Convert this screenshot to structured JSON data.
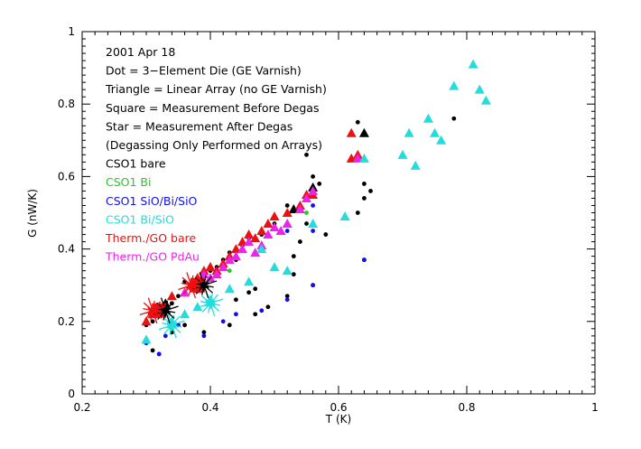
{
  "chart_data": {
    "type": "scatter",
    "xlabel": "T (K)",
    "ylabel": "G (nW/K)",
    "xlim": [
      0.2,
      1.0
    ],
    "ylim": [
      0,
      1.0
    ],
    "x_ticks": [
      "0.2",
      "0.4",
      "0.6",
      "0.8",
      "1"
    ],
    "y_ticks": [
      "0",
      "0.2",
      "0.4",
      "0.6",
      "0.8",
      "1"
    ],
    "grid": false,
    "legend_position": "top-left",
    "legend_lines": [
      {
        "text": "2001 Apr 18",
        "color": "#000000"
      },
      {
        "text": "Dot = 3−Element Die (GE Varnish)",
        "color": "#000000"
      },
      {
        "text": "Triangle = Linear Array (no GE Varnish)",
        "color": "#000000"
      },
      {
        "text": "Square = Measurement Before Degas",
        "color": "#000000"
      },
      {
        "text": "Star = Measurement After Degas",
        "color": "#000000"
      },
      {
        "text": "(Degassing Only Performed on Arrays)",
        "color": "#000000"
      },
      {
        "text": "CSO1 bare",
        "color": "#000000"
      },
      {
        "text": "CSO1 Bi",
        "color": "#22cc22"
      },
      {
        "text": "CSO1 SiO/Bi/SiO",
        "color": "#1010ee"
      },
      {
        "text": "CSO1 Bi/SiO",
        "color": "#22dddd"
      },
      {
        "text": "Therm./GO bare",
        "color": "#ee1010"
      },
      {
        "text": "Therm./GO PdAu",
        "color": "#ee22ee"
      }
    ],
    "series": [
      {
        "color": "#000000",
        "marker": "dot",
        "points": [
          [
            0.3,
            0.19
          ],
          [
            0.31,
            0.2
          ],
          [
            0.32,
            0.22
          ],
          [
            0.33,
            0.23
          ],
          [
            0.34,
            0.25
          ],
          [
            0.35,
            0.27
          ],
          [
            0.36,
            0.31
          ],
          [
            0.37,
            0.29
          ],
          [
            0.38,
            0.32
          ],
          [
            0.39,
            0.3
          ],
          [
            0.4,
            0.34
          ],
          [
            0.41,
            0.35
          ],
          [
            0.42,
            0.37
          ],
          [
            0.43,
            0.39
          ],
          [
            0.44,
            0.37
          ],
          [
            0.45,
            0.41
          ],
          [
            0.46,
            0.43
          ],
          [
            0.48,
            0.44
          ],
          [
            0.5,
            0.47
          ],
          [
            0.52,
            0.52
          ],
          [
            0.55,
            0.54
          ],
          [
            0.56,
            0.6
          ],
          [
            0.55,
            0.66
          ],
          [
            0.57,
            0.58
          ],
          [
            0.63,
            0.75
          ],
          [
            0.62,
            0.65
          ],
          [
            0.64,
            0.58
          ],
          [
            0.65,
            0.56
          ],
          [
            0.64,
            0.54
          ],
          [
            0.63,
            0.5
          ],
          [
            0.78,
            0.76
          ],
          [
            0.52,
            0.27
          ],
          [
            0.53,
            0.38
          ],
          [
            0.54,
            0.42
          ],
          [
            0.55,
            0.47
          ],
          [
            0.56,
            0.3
          ],
          [
            0.58,
            0.44
          ],
          [
            0.64,
            0.37
          ],
          [
            0.49,
            0.24
          ],
          [
            0.47,
            0.22
          ],
          [
            0.43,
            0.19
          ],
          [
            0.39,
            0.17
          ],
          [
            0.32,
            0.11
          ],
          [
            0.31,
            0.12
          ],
          [
            0.34,
            0.17
          ],
          [
            0.36,
            0.19
          ],
          [
            0.44,
            0.26
          ],
          [
            0.46,
            0.28
          ],
          [
            0.53,
            0.33
          ],
          [
            0.47,
            0.29
          ]
        ]
      },
      {
        "color": "#1010ee",
        "marker": "dot",
        "points": [
          [
            0.3,
            0.14
          ],
          [
            0.32,
            0.11
          ],
          [
            0.33,
            0.16
          ],
          [
            0.35,
            0.19
          ],
          [
            0.39,
            0.16
          ],
          [
            0.42,
            0.2
          ],
          [
            0.44,
            0.22
          ],
          [
            0.48,
            0.23
          ],
          [
            0.52,
            0.26
          ],
          [
            0.56,
            0.3
          ],
          [
            0.64,
            0.37
          ],
          [
            0.52,
            0.45
          ],
          [
            0.56,
            0.52
          ],
          [
            0.56,
            0.45
          ]
        ]
      },
      {
        "color": "#22cc22",
        "marker": "dot",
        "points": [
          [
            0.34,
            0.18
          ],
          [
            0.4,
            0.25
          ],
          [
            0.43,
            0.34
          ],
          [
            0.55,
            0.5
          ]
        ]
      },
      {
        "color": "#000000",
        "marker": "triangle",
        "points": [
          [
            0.31,
            0.23
          ],
          [
            0.32,
            0.24
          ],
          [
            0.33,
            0.25
          ],
          [
            0.37,
            0.3
          ],
          [
            0.38,
            0.3
          ],
          [
            0.4,
            0.35
          ],
          [
            0.53,
            0.51
          ],
          [
            0.56,
            0.57
          ],
          [
            0.64,
            0.72
          ]
        ]
      },
      {
        "color": "#ee1010",
        "marker": "triangle",
        "points": [
          [
            0.3,
            0.2
          ],
          [
            0.31,
            0.22
          ],
          [
            0.32,
            0.24
          ],
          [
            0.34,
            0.27
          ],
          [
            0.36,
            0.28
          ],
          [
            0.37,
            0.3
          ],
          [
            0.38,
            0.32
          ],
          [
            0.39,
            0.34
          ],
          [
            0.4,
            0.35
          ],
          [
            0.41,
            0.34
          ],
          [
            0.42,
            0.36
          ],
          [
            0.43,
            0.38
          ],
          [
            0.44,
            0.4
          ],
          [
            0.45,
            0.42
          ],
          [
            0.46,
            0.44
          ],
          [
            0.47,
            0.43
          ],
          [
            0.48,
            0.45
          ],
          [
            0.49,
            0.47
          ],
          [
            0.5,
            0.49
          ],
          [
            0.52,
            0.5
          ],
          [
            0.54,
            0.52
          ],
          [
            0.55,
            0.55
          ],
          [
            0.56,
            0.55
          ],
          [
            0.62,
            0.72
          ],
          [
            0.63,
            0.66
          ],
          [
            0.62,
            0.65
          ]
        ]
      },
      {
        "color": "#ee22ee",
        "marker": "triangle",
        "points": [
          [
            0.36,
            0.28
          ],
          [
            0.37,
            0.3
          ],
          [
            0.38,
            0.29
          ],
          [
            0.39,
            0.33
          ],
          [
            0.4,
            0.32
          ],
          [
            0.41,
            0.33
          ],
          [
            0.42,
            0.35
          ],
          [
            0.43,
            0.37
          ],
          [
            0.44,
            0.38
          ],
          [
            0.45,
            0.4
          ],
          [
            0.46,
            0.42
          ],
          [
            0.47,
            0.39
          ],
          [
            0.48,
            0.41
          ],
          [
            0.49,
            0.44
          ],
          [
            0.5,
            0.46
          ],
          [
            0.51,
            0.45
          ],
          [
            0.52,
            0.47
          ],
          [
            0.54,
            0.51
          ],
          [
            0.55,
            0.54
          ],
          [
            0.56,
            0.56
          ],
          [
            0.63,
            0.65
          ]
        ]
      },
      {
        "color": "#22dddd",
        "marker": "triangle",
        "points": [
          [
            0.3,
            0.15
          ],
          [
            0.34,
            0.2
          ],
          [
            0.36,
            0.22
          ],
          [
            0.38,
            0.24
          ],
          [
            0.4,
            0.26
          ],
          [
            0.43,
            0.29
          ],
          [
            0.46,
            0.31
          ],
          [
            0.48,
            0.4
          ],
          [
            0.5,
            0.35
          ],
          [
            0.52,
            0.34
          ],
          [
            0.56,
            0.47
          ],
          [
            0.61,
            0.49
          ],
          [
            0.64,
            0.65
          ],
          [
            0.7,
            0.66
          ],
          [
            0.71,
            0.72
          ],
          [
            0.72,
            0.63
          ],
          [
            0.74,
            0.76
          ],
          [
            0.75,
            0.72
          ],
          [
            0.76,
            0.7
          ],
          [
            0.78,
            0.85
          ],
          [
            0.81,
            0.91
          ],
          [
            0.82,
            0.84
          ],
          [
            0.83,
            0.81
          ]
        ]
      },
      {
        "color": "#ee1010",
        "marker": "square",
        "points": [
          [
            0.32,
            0.23
          ],
          [
            0.38,
            0.3
          ]
        ]
      },
      {
        "color": "#22dddd",
        "marker": "star",
        "points": [
          [
            0.34,
            0.19
          ],
          [
            0.4,
            0.25
          ]
        ]
      },
      {
        "color": "#000000",
        "marker": "star",
        "points": [
          [
            0.33,
            0.23
          ],
          [
            0.39,
            0.3
          ]
        ]
      },
      {
        "color": "#ee1010",
        "marker": "star",
        "points": [
          [
            0.31,
            0.23
          ],
          [
            0.37,
            0.3
          ]
        ]
      }
    ]
  }
}
